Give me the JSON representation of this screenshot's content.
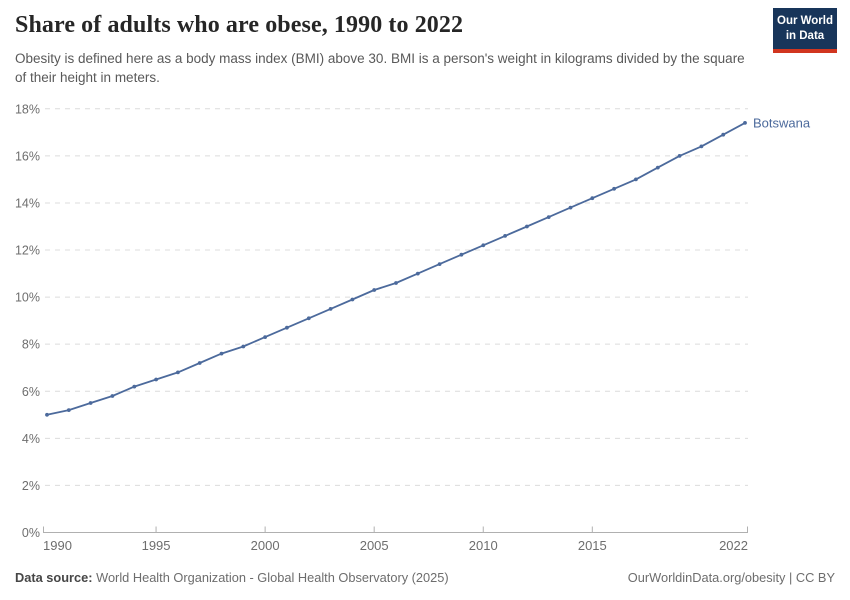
{
  "header": {
    "title": "Share of adults who are obese, 1990 to 2022",
    "subtitle": "Obesity is defined here as a body mass index (BMI) above 30. BMI is a person's weight in kilograms divided by the square of their height in meters.",
    "logo": {
      "line1": "Our World",
      "line2": "in Data"
    }
  },
  "colors": {
    "series_blue": "#4C6A9C",
    "gridline": "#dcdcdc",
    "axis": "#b0b0b0",
    "tick_text": "#6e6e6e",
    "logo_navy": "#18355a",
    "logo_red": "#d1351f"
  },
  "chart_data": {
    "type": "line",
    "title": "Share of adults who are obese, 1990 to 2022",
    "xlabel": "",
    "ylabel": "",
    "xlim": [
      1990,
      2022
    ],
    "ylim": [
      0,
      18
    ],
    "x_ticks": [
      1990,
      1995,
      2000,
      2005,
      2010,
      2015,
      2022
    ],
    "y_ticks": [
      0,
      2,
      4,
      6,
      8,
      10,
      12,
      14,
      16,
      18
    ],
    "y_tick_suffix": "%",
    "grid": true,
    "legend_position": "end-of-line-label",
    "series": [
      {
        "name": "Botswana",
        "color": "#4C6A9C",
        "x": [
          1990,
          1991,
          1992,
          1993,
          1994,
          1995,
          1996,
          1997,
          1998,
          1999,
          2000,
          2001,
          2002,
          2003,
          2004,
          2005,
          2006,
          2007,
          2008,
          2009,
          2010,
          2011,
          2012,
          2013,
          2014,
          2015,
          2016,
          2017,
          2018,
          2019,
          2020,
          2021,
          2022
        ],
        "values": [
          5.0,
          5.2,
          5.5,
          5.8,
          6.2,
          6.5,
          6.8,
          7.2,
          7.6,
          7.9,
          8.3,
          8.7,
          9.1,
          9.5,
          9.9,
          10.3,
          10.6,
          11.0,
          11.4,
          11.8,
          12.2,
          12.6,
          13.0,
          13.4,
          13.8,
          14.2,
          14.6,
          15.0,
          15.5,
          16.0,
          16.4,
          16.9,
          17.4
        ]
      }
    ]
  },
  "footer": {
    "datasource_label": "Data source:",
    "datasource": "World Health Organization - Global Health Observatory (2025)",
    "credit": "OurWorldinData.org/obesity | CC BY"
  }
}
